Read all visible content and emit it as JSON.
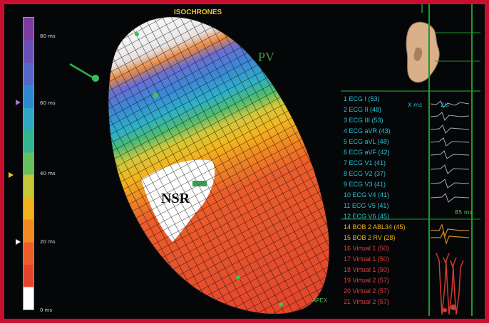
{
  "title": "ISOCHRONES",
  "scale": {
    "colors": [
      "#7c3aa5",
      "#6a4fb8",
      "#5566c8",
      "#2f86d1",
      "#2ea8c4",
      "#34b38f",
      "#66c05b",
      "#c6c83a",
      "#f0b21d",
      "#f28a22",
      "#ec5d2a",
      "#e6452d",
      "#ffffff"
    ],
    "labels": [
      "80 ms",
      "60 ms",
      "40 ms",
      "20 ms",
      "0 ms"
    ]
  },
  "map_labels": {
    "pv": "PV",
    "nsr": "NSR",
    "apex": "APEX"
  },
  "ecg": {
    "header_left": "X ms",
    "header_right": "2/s",
    "mid_value": "85 ms",
    "leads": [
      {
        "text": "1 ECG I (53)",
        "color": "#27c4d6"
      },
      {
        "text": "2 ECG II (48)",
        "color": "#27c4d6"
      },
      {
        "text": "3 ECG III (53)",
        "color": "#27c4d6"
      },
      {
        "text": "4 ECG aVR (43)",
        "color": "#27c4d6"
      },
      {
        "text": "5 ECG aVL (48)",
        "color": "#27c4d6"
      },
      {
        "text": "6 ECG aVF (42)",
        "color": "#27c4d6"
      },
      {
        "text": "7 ECG V1 (41)",
        "color": "#27c4d6"
      },
      {
        "text": "8 ECG V2 (37)",
        "color": "#27c4d6"
      },
      {
        "text": "9 ECG V3 (41)",
        "color": "#27c4d6"
      },
      {
        "text": "10 ECG V4 (41)",
        "color": "#27c4d6"
      },
      {
        "text": "11 ECG V5 (41)",
        "color": "#27c4d6"
      },
      {
        "text": "12 ECG V6 (45)",
        "color": "#27c4d6"
      },
      {
        "text": "14 BOB 2   ABL34 (45)",
        "color": "#f2b31a"
      },
      {
        "text": "15 BOB 2   RV (28)",
        "color": "#f2b31a"
      },
      {
        "text": "16 Virtual 1 (50)",
        "color": "#e0413a"
      },
      {
        "text": "17 Virtual 1 (50)",
        "color": "#e0413a"
      },
      {
        "text": "18 Virtual 1 (50)",
        "color": "#e0413a"
      },
      {
        "text": "19 Virtual 2 (57)",
        "color": "#e0413a"
      },
      {
        "text": "20 Virtual 2 (57)",
        "color": "#e0413a"
      },
      {
        "text": "21 Virtual 2 (57)",
        "color": "#e0413a"
      }
    ]
  }
}
